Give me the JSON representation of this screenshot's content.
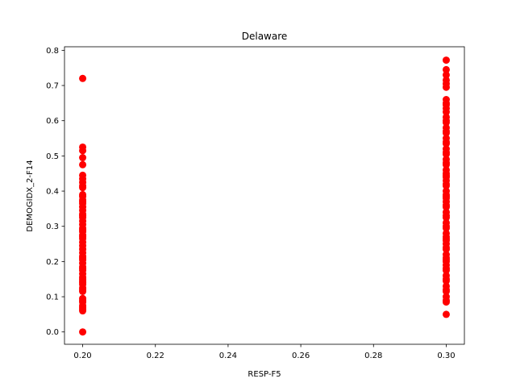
{
  "chart_data": {
    "type": "scatter",
    "title": "Delaware",
    "xlabel": "RESP-F5",
    "ylabel": "DEMOGIDX_2-F14",
    "xlim": [
      0.195,
      0.305
    ],
    "ylim": [
      -0.035,
      0.81
    ],
    "xticks": [
      0.2,
      0.22,
      0.24,
      0.26,
      0.28,
      0.3
    ],
    "xtick_labels": [
      "0.20",
      "0.22",
      "0.24",
      "0.26",
      "0.28",
      "0.30"
    ],
    "yticks": [
      0.0,
      0.1,
      0.2,
      0.3,
      0.4,
      0.5,
      0.6,
      0.7,
      0.8
    ],
    "ytick_labels": [
      "0.0",
      "0.1",
      "0.2",
      "0.3",
      "0.4",
      "0.5",
      "0.6",
      "0.7",
      "0.8"
    ],
    "grid": false,
    "marker_color": "#ff0000",
    "series": [
      {
        "x": [
          0.2,
          0.2,
          0.2,
          0.2,
          0.2,
          0.2,
          0.2,
          0.2,
          0.2,
          0.2,
          0.2,
          0.2,
          0.2,
          0.2,
          0.2,
          0.2,
          0.2,
          0.2,
          0.2,
          0.2,
          0.2,
          0.2,
          0.2,
          0.2,
          0.2,
          0.2,
          0.2,
          0.2,
          0.2,
          0.2,
          0.2,
          0.2,
          0.2,
          0.2,
          0.2,
          0.2,
          0.2,
          0.2,
          0.2,
          0.2,
          0.2,
          0.2,
          0.2,
          0.2,
          0.2,
          0.2,
          0.2,
          0.2,
          0.2,
          0.2,
          0.2,
          0.2,
          0.2,
          0.2,
          0.2,
          0.2
        ],
        "y": [
          0.72,
          0.525,
          0.515,
          0.495,
          0.475,
          0.445,
          0.435,
          0.425,
          0.415,
          0.385,
          0.375,
          0.365,
          0.355,
          0.345,
          0.335,
          0.325,
          0.315,
          0.305,
          0.295,
          0.285,
          0.275,
          0.265,
          0.255,
          0.245,
          0.235,
          0.225,
          0.215,
          0.205,
          0.195,
          0.185,
          0.175,
          0.165,
          0.155,
          0.145,
          0.135,
          0.125,
          0.115,
          0.095,
          0.085,
          0.075,
          0.065,
          0.06,
          0.0,
          0.41,
          0.39,
          0.37,
          0.33,
          0.29,
          0.27,
          0.21,
          0.18,
          0.15,
          0.14,
          0.12,
          0.09,
          0.07
        ]
      },
      {
        "x": [
          0.3,
          0.3,
          0.3,
          0.3,
          0.3,
          0.3,
          0.3,
          0.3,
          0.3,
          0.3,
          0.3,
          0.3,
          0.3,
          0.3,
          0.3,
          0.3,
          0.3,
          0.3,
          0.3,
          0.3,
          0.3,
          0.3,
          0.3,
          0.3,
          0.3,
          0.3,
          0.3,
          0.3,
          0.3,
          0.3,
          0.3,
          0.3,
          0.3,
          0.3,
          0.3,
          0.3,
          0.3,
          0.3,
          0.3,
          0.3,
          0.3,
          0.3,
          0.3,
          0.3,
          0.3,
          0.3,
          0.3,
          0.3,
          0.3,
          0.3,
          0.3,
          0.3,
          0.3,
          0.3,
          0.3,
          0.3,
          0.3,
          0.3,
          0.3,
          0.3,
          0.3,
          0.3,
          0.3,
          0.3,
          0.3,
          0.3,
          0.3,
          0.3,
          0.3,
          0.3
        ],
        "y": [
          0.772,
          0.745,
          0.73,
          0.715,
          0.705,
          0.695,
          0.66,
          0.645,
          0.635,
          0.625,
          0.61,
          0.595,
          0.58,
          0.565,
          0.55,
          0.535,
          0.52,
          0.505,
          0.49,
          0.475,
          0.46,
          0.445,
          0.43,
          0.415,
          0.4,
          0.385,
          0.37,
          0.355,
          0.34,
          0.325,
          0.31,
          0.295,
          0.28,
          0.265,
          0.25,
          0.235,
          0.22,
          0.205,
          0.19,
          0.175,
          0.16,
          0.145,
          0.13,
          0.115,
          0.1,
          0.085,
          0.05,
          0.65,
          0.6,
          0.57,
          0.54,
          0.51,
          0.48,
          0.45,
          0.42,
          0.39,
          0.36,
          0.33,
          0.3,
          0.27,
          0.24,
          0.21,
          0.18,
          0.15,
          0.12,
          0.09,
          0.44,
          0.38,
          0.26,
          0.2
        ]
      }
    ]
  }
}
